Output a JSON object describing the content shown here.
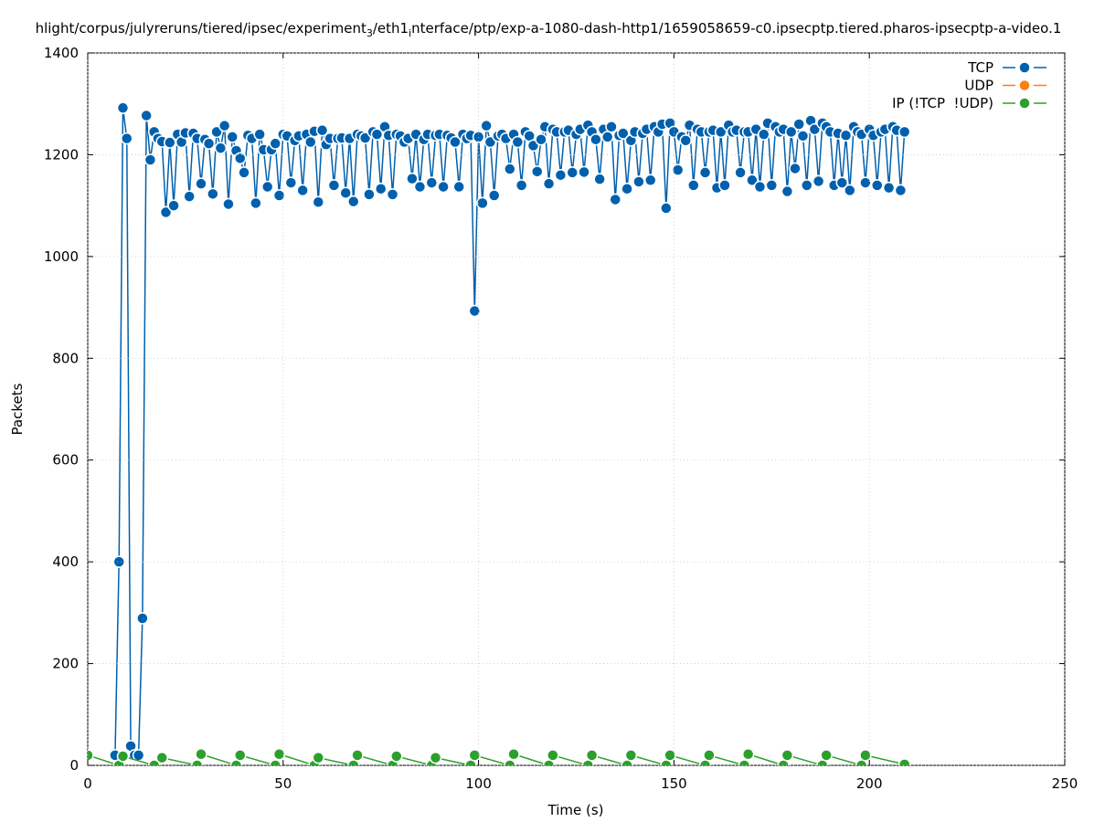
{
  "chart_data": {
    "type": "line",
    "title_parts": [
      "hlight/corpus/julyreruns/tiered/ipsec/experiment",
      "3",
      "/eth1",
      "i",
      "nterface/ptp/exp-a-1080-dash-http1/1659058659-c0.ipsecptp.tiered.pharos-ipsecptp-a-video.1"
    ],
    "x_label": "Time (s)",
    "y_label": "Packets",
    "xlim": [
      0,
      250
    ],
    "xticks": [
      0,
      50,
      100,
      150,
      200,
      250
    ],
    "ylim": [
      0,
      1400
    ],
    "yticks": [
      0,
      200,
      400,
      600,
      800,
      1000,
      1200,
      1400
    ],
    "grid": true,
    "legend": "top-right",
    "series": [
      {
        "name": "TCP",
        "color": "#0060ad",
        "x": [
          7,
          8,
          9,
          10,
          11,
          12,
          13,
          14,
          15,
          16,
          17,
          18,
          19,
          20,
          21,
          22,
          23,
          24,
          25,
          26,
          27,
          28,
          29,
          30,
          31,
          32,
          33,
          34,
          35,
          36,
          37,
          38,
          39,
          40,
          41,
          42,
          43,
          44,
          45,
          46,
          47,
          48,
          49,
          50,
          51,
          52,
          53,
          54,
          55,
          56,
          57,
          58,
          59,
          60,
          61,
          62,
          63,
          64,
          65,
          66,
          67,
          68,
          69,
          70,
          71,
          72,
          73,
          74,
          75,
          76,
          77,
          78,
          79,
          80,
          81,
          82,
          83,
          84,
          85,
          86,
          87,
          88,
          89,
          90,
          91,
          92,
          93,
          94,
          95,
          96,
          97,
          98,
          99,
          100,
          101,
          102,
          103,
          104,
          105,
          106,
          107,
          108,
          109,
          110,
          111,
          112,
          113,
          114,
          115,
          116,
          117,
          118,
          119,
          120,
          121,
          122,
          123,
          124,
          125,
          126,
          127,
          128,
          129,
          130,
          131,
          132,
          133,
          134,
          135,
          136,
          137,
          138,
          139,
          140,
          141,
          142,
          143,
          144,
          145,
          146,
          147,
          148,
          149,
          150,
          151,
          152,
          153,
          154,
          155,
          156,
          157,
          158,
          159,
          160,
          161,
          162,
          163,
          164,
          165,
          166,
          167,
          168,
          169,
          170,
          171,
          172,
          173,
          174,
          175,
          176,
          177,
          178,
          179,
          180,
          181,
          182,
          183,
          184,
          185,
          186,
          187,
          188,
          189,
          190,
          191,
          192,
          193,
          194,
          195,
          196,
          197,
          198,
          199,
          200,
          201,
          202,
          203,
          204,
          205,
          206,
          207,
          208,
          209
        ],
        "values": [
          20,
          400,
          1292,
          1232,
          38,
          20,
          20,
          289,
          1277,
          1190,
          1245,
          1232,
          1226,
          1087,
          1224,
          1100,
          1240,
          1225,
          1243,
          1118,
          1242,
          1232,
          1143,
          1230,
          1222,
          1123,
          1245,
          1213,
          1257,
          1103,
          1235,
          1208,
          1193,
          1165,
          1238,
          1232,
          1105,
          1240,
          1210,
          1137,
          1210,
          1222,
          1120,
          1240,
          1237,
          1145,
          1228,
          1237,
          1130,
          1240,
          1225,
          1246,
          1107,
          1248,
          1220,
          1232,
          1140,
          1232,
          1233,
          1125,
          1232,
          1108,
          1240,
          1237,
          1233,
          1122,
          1245,
          1240,
          1133,
          1255,
          1238,
          1122,
          1240,
          1237,
          1225,
          1232,
          1153,
          1240,
          1137,
          1230,
          1240,
          1145,
          1238,
          1240,
          1137,
          1238,
          1233,
          1225,
          1137,
          1240,
          1232,
          1238,
          893,
          1235,
          1105,
          1257,
          1225,
          1120,
          1237,
          1240,
          1232,
          1172,
          1240,
          1225,
          1140,
          1245,
          1237,
          1218,
          1167,
          1230,
          1255,
          1143,
          1250,
          1245,
          1160,
          1245,
          1248,
          1165,
          1240,
          1250,
          1166,
          1258,
          1245,
          1230,
          1152,
          1250,
          1235,
          1255,
          1112,
          1238,
          1242,
          1133,
          1228,
          1245,
          1147,
          1242,
          1250,
          1150,
          1255,
          1245,
          1260,
          1095,
          1262,
          1245,
          1170,
          1235,
          1228,
          1258,
          1140,
          1250,
          1245,
          1165,
          1245,
          1248,
          1135,
          1245,
          1140,
          1258,
          1245,
          1248,
          1165,
          1245,
          1245,
          1150,
          1250,
          1137,
          1240,
          1262,
          1140,
          1255,
          1245,
          1250,
          1128,
          1245,
          1173,
          1260,
          1237,
          1140,
          1267,
          1250,
          1148,
          1262,
          1255,
          1245,
          1140,
          1242,
          1145,
          1238,
          1130,
          1255,
          1245,
          1240,
          1145,
          1250,
          1238,
          1140,
          1245,
          1250,
          1135,
          1255,
          1248,
          1130,
          1245
        ]
      },
      {
        "name": "UDP",
        "color": "#ff7f0e",
        "x": [],
        "values": []
      },
      {
        "name": "IP (!TCP  !UDP)",
        "color": "#2ca02c",
        "x": [
          0,
          8,
          9,
          17,
          19,
          28,
          29,
          38,
          39,
          48,
          49,
          58,
          59,
          68,
          69,
          78,
          79,
          88,
          89,
          98,
          99,
          108,
          109,
          118,
          119,
          128,
          129,
          138,
          139,
          148,
          149,
          158,
          159,
          168,
          169,
          178,
          179,
          188,
          189,
          198,
          199,
          209
        ],
        "values": [
          20,
          0,
          18,
          0,
          15,
          0,
          22,
          0,
          20,
          0,
          22,
          0,
          15,
          0,
          20,
          0,
          18,
          0,
          15,
          0,
          20,
          0,
          22,
          0,
          20,
          0,
          20,
          0,
          20,
          0,
          20,
          0,
          20,
          0,
          22,
          0,
          20,
          0,
          20,
          0,
          20,
          2
        ]
      }
    ]
  }
}
